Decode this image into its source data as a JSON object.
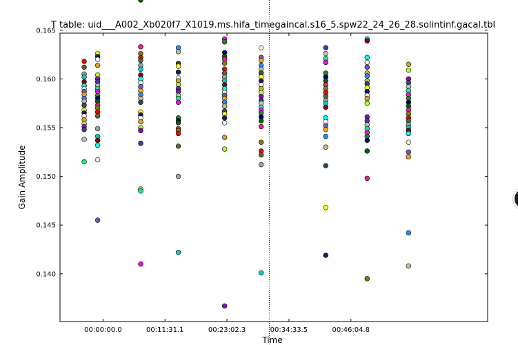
{
  "chart_data": {
    "type": "scatter",
    "title": "T table: uid___A002_Xb020f7_X1019.ms.hifa_timegaincal.s16_5.spw22_24_26_28.solintinf.gacal.tbl",
    "xlabel": "Time",
    "ylabel": "Gain Amplitude",
    "xlim_minutes": [
      -8.0,
      71.5
    ],
    "ylim": [
      0.1351,
      0.1647
    ],
    "grid": false,
    "x_ticks": [
      {
        "minutes": 0.0,
        "label": "00:00:00.0"
      },
      {
        "minutes": 11.525,
        "label": "00:11:31.1"
      },
      {
        "minutes": 23.038,
        "label": "00:23:02.3"
      },
      {
        "minutes": 34.558,
        "label": "00:34:33.5"
      },
      {
        "minutes": 46.08,
        "label": "00:46:04.8"
      }
    ],
    "y_ticks": [
      0.14,
      0.145,
      0.15,
      0.155,
      0.16,
      0.165
    ],
    "y_tick_labels": [
      "0.140",
      "0.145",
      "0.150",
      "0.155",
      "0.160",
      "0.165"
    ],
    "vertical_marker_minutes": 30.9,
    "palette": [
      "#ff0000",
      "#8b0000",
      "#ffa500",
      "#ffff00",
      "#adff2f",
      "#00ff7f",
      "#006400",
      "#556b2f",
      "#00ffff",
      "#1e90ff",
      "#191970",
      "#9400d3",
      "#ff00ff",
      "#ff1493",
      "#a0a0a0",
      "#f5f5dc",
      "#d2b48c",
      "#ffffff",
      "#483d8b",
      "#228b22",
      "#808000",
      "#00ced1",
      "#6a5acd",
      "#2f4f4f",
      "#daa520",
      "#c0c0c0",
      "#000080"
    ],
    "columns": [
      {
        "x": -3.5,
        "values": [
          0.1618,
          0.1612,
          0.1605,
          0.1602,
          0.1597,
          0.1593,
          0.159,
          0.1587,
          0.1584,
          0.158,
          0.1577,
          0.1573,
          0.1568,
          0.1565,
          0.1562,
          0.1558,
          0.1554,
          0.1551,
          0.1548,
          0.1538,
          0.1515
        ]
      },
      {
        "x": -1.0,
        "values": [
          0.1626,
          0.1623,
          0.162,
          0.1614,
          0.1604,
          0.16,
          0.1597,
          0.1593,
          0.159,
          0.1587,
          0.1583,
          0.158,
          0.1577,
          0.1573,
          0.157,
          0.1566,
          0.1562,
          0.1549,
          0.1541,
          0.1537,
          0.1532,
          0.1517,
          0.1455
        ]
      },
      {
        "x": 7.0,
        "values": [
          0.1681,
          0.1633,
          0.1626,
          0.1622,
          0.1619,
          0.1614,
          0.161,
          0.1604,
          0.16,
          0.1596,
          0.1592,
          0.1588,
          0.1584,
          0.158,
          0.1576,
          0.1566,
          0.1563,
          0.156,
          0.1556,
          0.155,
          0.1547,
          0.1534,
          0.1487,
          0.1485,
          0.141
        ]
      },
      {
        "x": 14.0,
        "values": [
          0.1632,
          0.1628,
          0.1616,
          0.1613,
          0.1607,
          0.1601,
          0.1598,
          0.1594,
          0.159,
          0.1587,
          0.1583,
          0.158,
          0.1576,
          0.156,
          0.1557,
          0.1555,
          0.1549,
          0.1547,
          0.1544,
          0.1531,
          0.15,
          0.1422
        ]
      },
      {
        "x": 22.6,
        "values": [
          0.1641,
          0.1638,
          0.1627,
          0.1623,
          0.162,
          0.1616,
          0.161,
          0.1606,
          0.1602,
          0.1598,
          0.1594,
          0.159,
          0.1586,
          0.1583,
          0.158,
          0.1576,
          0.1572,
          0.1567,
          0.1564,
          0.156,
          0.1555,
          0.154,
          0.1528,
          0.1367
        ]
      },
      {
        "x": 29.4,
        "values": [
          0.1632,
          0.1622,
          0.1619,
          0.1614,
          0.161,
          0.1606,
          0.1602,
          0.1598,
          0.1594,
          0.159,
          0.1586,
          0.1582,
          0.1578,
          0.1575,
          0.1571,
          0.1568,
          0.1565,
          0.1561,
          0.1557,
          0.1551,
          0.1535,
          0.1526,
          0.1522,
          0.1512,
          0.1401
        ]
      },
      {
        "x": 41.4,
        "values": [
          0.1632,
          0.1626,
          0.1621,
          0.1617,
          0.1606,
          0.1602,
          0.1598,
          0.1594,
          0.159,
          0.1586,
          0.1582,
          0.1578,
          0.1575,
          0.1571,
          0.156,
          0.1556,
          0.1552,
          0.1548,
          0.1541,
          0.153,
          0.1511,
          0.1468,
          0.1419
        ]
      },
      {
        "x": 49.1,
        "values": [
          0.1641,
          0.1639,
          0.1622,
          0.1617,
          0.1612,
          0.1606,
          0.1603,
          0.1598,
          0.1595,
          0.1591,
          0.1587,
          0.1583,
          0.158,
          0.1575,
          0.1561,
          0.1557,
          0.1553,
          0.1549,
          0.1545,
          0.1541,
          0.1537,
          0.1526,
          0.1498,
          0.1395
        ]
      },
      {
        "x": 56.8,
        "values": [
          0.1615,
          0.1609,
          0.16,
          0.1596,
          0.1592,
          0.1588,
          0.1584,
          0.158,
          0.1576,
          0.1572,
          0.1568,
          0.1564,
          0.156,
          0.1557,
          0.1553,
          0.155,
          0.1547,
          0.1544,
          0.1535,
          0.1525,
          0.152,
          0.1442,
          0.1408
        ]
      }
    ]
  }
}
